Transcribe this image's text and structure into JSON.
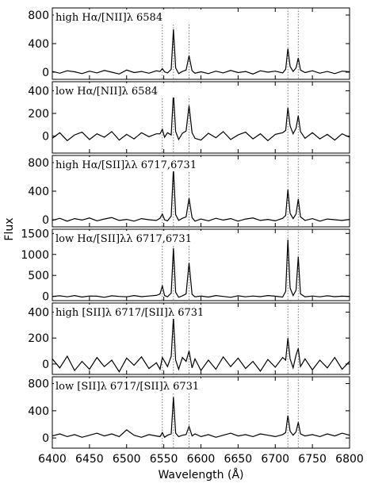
{
  "chart_data": [
    {
      "type": "line",
      "label": "high Hα/[NII]λ 6584",
      "ylabel": "Flux",
      "color": "#000000",
      "vlines": [
        6548,
        6563,
        6584,
        6717,
        6731
      ],
      "xlim": [
        6400,
        6800
      ],
      "ylim": [
        -100,
        900
      ],
      "yticks": [
        0,
        400,
        800
      ],
      "x": [
        6400,
        6410,
        6420,
        6430,
        6440,
        6450,
        6460,
        6470,
        6480,
        6490,
        6500,
        6510,
        6520,
        6530,
        6540,
        6545,
        6548,
        6551,
        6555,
        6560,
        6563,
        6566,
        6570,
        6575,
        6580,
        6584,
        6588,
        6592,
        6600,
        6610,
        6620,
        6630,
        6640,
        6650,
        6660,
        6670,
        6680,
        6690,
        6700,
        6710,
        6714,
        6717,
        6720,
        6724,
        6728,
        6731,
        6734,
        6740,
        6750,
        6760,
        6770,
        6780,
        6790,
        6800
      ],
      "values": [
        10,
        -15,
        20,
        5,
        -20,
        15,
        -10,
        25,
        0,
        -25,
        30,
        -5,
        10,
        -15,
        20,
        10,
        50,
        5,
        -10,
        40,
        600,
        60,
        -20,
        10,
        30,
        230,
        20,
        -15,
        5,
        -20,
        15,
        -10,
        25,
        -5,
        10,
        -25,
        20,
        0,
        15,
        -10,
        40,
        330,
        80,
        10,
        60,
        200,
        30,
        -5,
        20,
        -15,
        10,
        -20,
        15,
        5
      ]
    },
    {
      "type": "line",
      "label": "low Hα/[NII]λ 6584",
      "color": "#000000",
      "vlines": [
        6548,
        6563,
        6584,
        6717,
        6731
      ],
      "xlim": [
        6400,
        6800
      ],
      "ylim": [
        -150,
        480
      ],
      "yticks": [
        0,
        200,
        400
      ],
      "x": [
        6400,
        6410,
        6420,
        6430,
        6440,
        6450,
        6460,
        6470,
        6480,
        6490,
        6500,
        6510,
        6520,
        6530,
        6540,
        6545,
        6548,
        6551,
        6555,
        6560,
        6563,
        6566,
        6570,
        6575,
        6580,
        6584,
        6588,
        6592,
        6600,
        6610,
        6620,
        6630,
        6640,
        6650,
        6660,
        6670,
        6680,
        6690,
        6700,
        6710,
        6714,
        6717,
        6720,
        6724,
        6728,
        6731,
        6734,
        6740,
        6750,
        6760,
        6770,
        6780,
        6790,
        6800
      ],
      "values": [
        -20,
        30,
        -40,
        10,
        35,
        -30,
        20,
        -10,
        40,
        -35,
        15,
        -25,
        30,
        -5,
        20,
        20,
        60,
        -10,
        30,
        10,
        380,
        40,
        -30,
        25,
        45,
        270,
        30,
        -20,
        -35,
        25,
        -15,
        40,
        -30,
        10,
        35,
        -25,
        20,
        -40,
        15,
        30,
        50,
        250,
        90,
        20,
        70,
        180,
        40,
        -20,
        30,
        -25,
        15,
        -35,
        20,
        -10
      ]
    },
    {
      "type": "line",
      "label": "high Hα/[SII]λλ 6717,6731",
      "color": "#000000",
      "vlines": [
        6548,
        6563,
        6584,
        6717,
        6731
      ],
      "xlim": [
        6400,
        6800
      ],
      "ylim": [
        -100,
        900
      ],
      "yticks": [
        0,
        400,
        800
      ],
      "x": [
        6400,
        6410,
        6420,
        6430,
        6440,
        6450,
        6460,
        6470,
        6480,
        6490,
        6500,
        6510,
        6520,
        6530,
        6540,
        6545,
        6548,
        6551,
        6555,
        6560,
        6563,
        6566,
        6570,
        6575,
        6580,
        6584,
        6588,
        6592,
        6600,
        6610,
        6620,
        6630,
        6640,
        6650,
        6660,
        6670,
        6680,
        6690,
        6700,
        6710,
        6714,
        6717,
        6720,
        6724,
        6728,
        6731,
        6734,
        6740,
        6750,
        6760,
        6770,
        6780,
        6790,
        6800
      ],
      "values": [
        -10,
        20,
        -20,
        15,
        -5,
        25,
        -15,
        10,
        30,
        -10,
        5,
        -20,
        15,
        0,
        -10,
        20,
        80,
        0,
        -15,
        50,
        720,
        70,
        -10,
        20,
        40,
        300,
        30,
        -20,
        10,
        -15,
        20,
        -5,
        15,
        -20,
        10,
        25,
        -10,
        5,
        -15,
        20,
        60,
        420,
        90,
        15,
        80,
        290,
        40,
        -10,
        15,
        -20,
        10,
        0,
        -10,
        5
      ]
    },
    {
      "type": "line",
      "label": "low Hα/[SII]λλ 6717,6731",
      "color": "#000000",
      "vlines": [
        6548,
        6563,
        6584,
        6717,
        6731
      ],
      "xlim": [
        6400,
        6800
      ],
      "ylim": [
        -100,
        1600
      ],
      "yticks": [
        0,
        500,
        1000,
        1500
      ],
      "x": [
        6400,
        6410,
        6420,
        6430,
        6440,
        6450,
        6460,
        6470,
        6480,
        6490,
        6500,
        6510,
        6520,
        6530,
        6540,
        6545,
        6548,
        6551,
        6555,
        6560,
        6563,
        6566,
        6570,
        6575,
        6580,
        6584,
        6588,
        6592,
        6600,
        6610,
        6620,
        6630,
        6640,
        6650,
        6660,
        6670,
        6680,
        6690,
        6700,
        6710,
        6714,
        6717,
        6720,
        6724,
        6728,
        6731,
        6734,
        6740,
        6750,
        6760,
        6770,
        6780,
        6790,
        6800
      ],
      "values": [
        0,
        15,
        -10,
        20,
        -15,
        10,
        5,
        -20,
        15,
        0,
        -10,
        20,
        -5,
        10,
        25,
        60,
        250,
        20,
        -10,
        80,
        1150,
        100,
        -20,
        15,
        60,
        800,
        50,
        -10,
        10,
        -15,
        20,
        0,
        -20,
        15,
        -10,
        10,
        -5,
        20,
        5,
        -15,
        120,
        1350,
        200,
        20,
        150,
        950,
        60,
        -10,
        10,
        -10,
        15,
        -5,
        5,
        0
      ]
    },
    {
      "type": "line",
      "label": "high [SII]λ 6717/[SII]λ 6731",
      "color": "#000000",
      "vlines": [
        6548,
        6563,
        6584,
        6717,
        6731
      ],
      "xlim": [
        6400,
        6800
      ],
      "ylim": [
        -80,
        470
      ],
      "yticks": [
        0,
        200,
        400
      ],
      "x": [
        6400,
        6410,
        6420,
        6430,
        6440,
        6450,
        6460,
        6470,
        6480,
        6490,
        6500,
        6510,
        6520,
        6530,
        6540,
        6545,
        6548,
        6551,
        6555,
        6560,
        6563,
        6566,
        6570,
        6575,
        6580,
        6584,
        6588,
        6592,
        6600,
        6610,
        6620,
        6630,
        6640,
        6650,
        6660,
        6670,
        6680,
        6690,
        6700,
        6710,
        6714,
        6717,
        6720,
        6724,
        6728,
        6731,
        6734,
        6740,
        6750,
        6760,
        6770,
        6780,
        6790,
        6800
      ],
      "values": [
        40,
        -30,
        60,
        -50,
        20,
        -40,
        50,
        -20,
        30,
        -60,
        45,
        -10,
        55,
        -35,
        10,
        -40,
        50,
        20,
        -20,
        60,
        360,
        30,
        -40,
        50,
        20,
        100,
        -30,
        40,
        -50,
        30,
        -40,
        55,
        -20,
        45,
        -35,
        20,
        -55,
        35,
        -25,
        50,
        30,
        200,
        40,
        -30,
        70,
        120,
        -20,
        40,
        -45,
        30,
        -30,
        50,
        -40,
        20
      ]
    },
    {
      "type": "line",
      "label": "low [SII]λ 6717/[SII]λ 6731",
      "xlabel": "Wavelength (Å)",
      "color": "#000000",
      "vlines": [
        6548,
        6563,
        6584,
        6717,
        6731
      ],
      "xlim": [
        6400,
        6800
      ],
      "xticks": [
        6400,
        6450,
        6500,
        6550,
        6600,
        6650,
        6700,
        6750,
        6800
      ],
      "ylim": [
        -150,
        900
      ],
      "yticks": [
        0,
        400,
        800
      ],
      "x": [
        6400,
        6410,
        6420,
        6430,
        6440,
        6450,
        6460,
        6470,
        6480,
        6490,
        6500,
        6510,
        6520,
        6530,
        6540,
        6545,
        6548,
        6551,
        6555,
        6560,
        6563,
        6566,
        6570,
        6575,
        6580,
        6584,
        6588,
        6592,
        6600,
        6610,
        6620,
        6630,
        6640,
        6650,
        6660,
        6670,
        6680,
        6690,
        6700,
        6710,
        6714,
        6717,
        6720,
        6724,
        6728,
        6731,
        6734,
        6740,
        6750,
        6760,
        6770,
        6780,
        6790,
        6800
      ],
      "values": [
        30,
        60,
        20,
        50,
        10,
        40,
        70,
        30,
        60,
        20,
        120,
        40,
        10,
        50,
        30,
        20,
        80,
        10,
        40,
        60,
        600,
        70,
        20,
        40,
        50,
        170,
        30,
        60,
        20,
        50,
        10,
        40,
        70,
        30,
        50,
        20,
        60,
        40,
        20,
        50,
        80,
        330,
        100,
        40,
        90,
        230,
        60,
        30,
        50,
        20,
        60,
        30,
        70,
        40
      ]
    }
  ]
}
